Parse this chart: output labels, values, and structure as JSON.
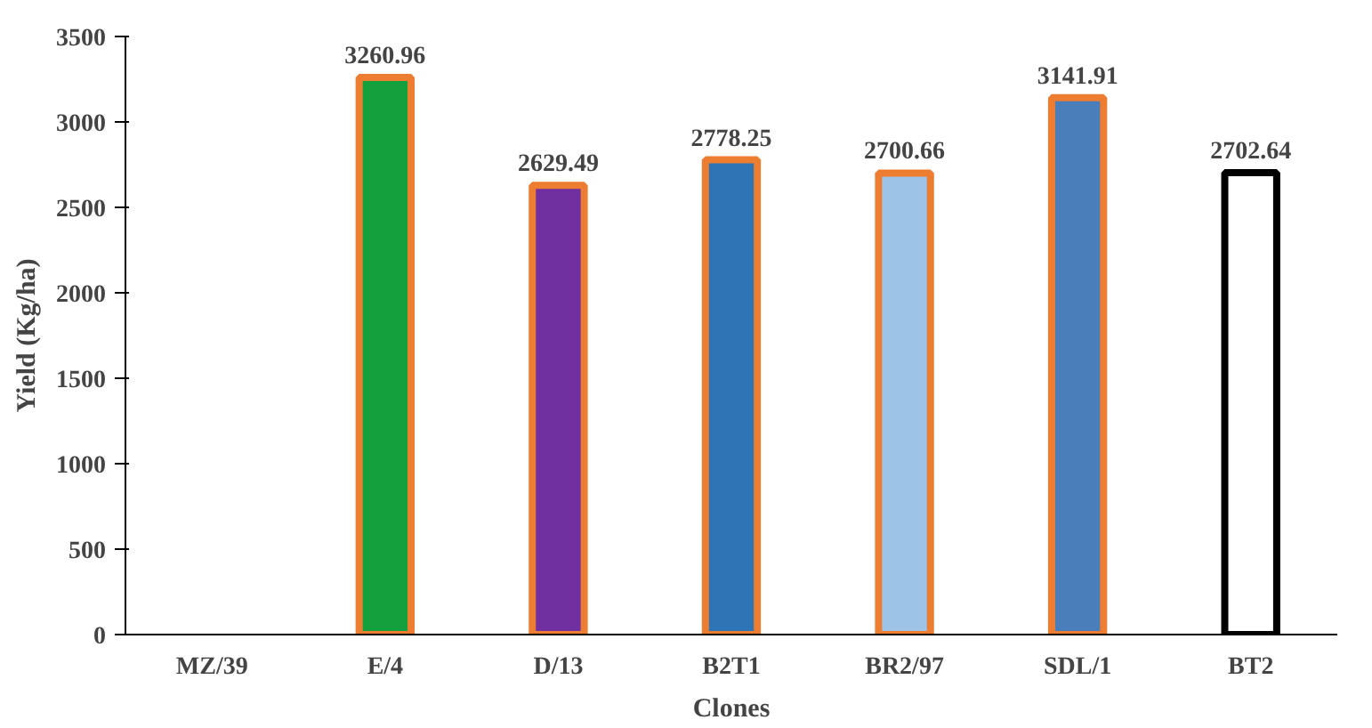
{
  "chart_data": {
    "type": "bar",
    "xlabel": "Clones",
    "ylabel": "Yield (Kg/ha)",
    "categories": [
      "MZ/39",
      "E/4",
      "D/13",
      "B2T1",
      "BR2/97",
      "SDL/1",
      "BT2"
    ],
    "values": [
      null,
      3260.96,
      2629.49,
      2778.25,
      2700.66,
      3141.91,
      2702.64
    ],
    "value_labels": [
      null,
      "3260.96",
      "2629.49",
      "2778.25",
      "2700.66",
      "3141.91",
      "2702.64"
    ],
    "colors": [
      "#ffffff",
      "#14a03c",
      "#7030a0",
      "#2e75b6",
      "#9dc3e6",
      "#4a7ebb",
      "#ffffff"
    ],
    "ylim": [
      0,
      3500
    ],
    "yticks": [
      0,
      500,
      1000,
      1500,
      2000,
      2500,
      3000,
      3500
    ],
    "grid": false
  }
}
